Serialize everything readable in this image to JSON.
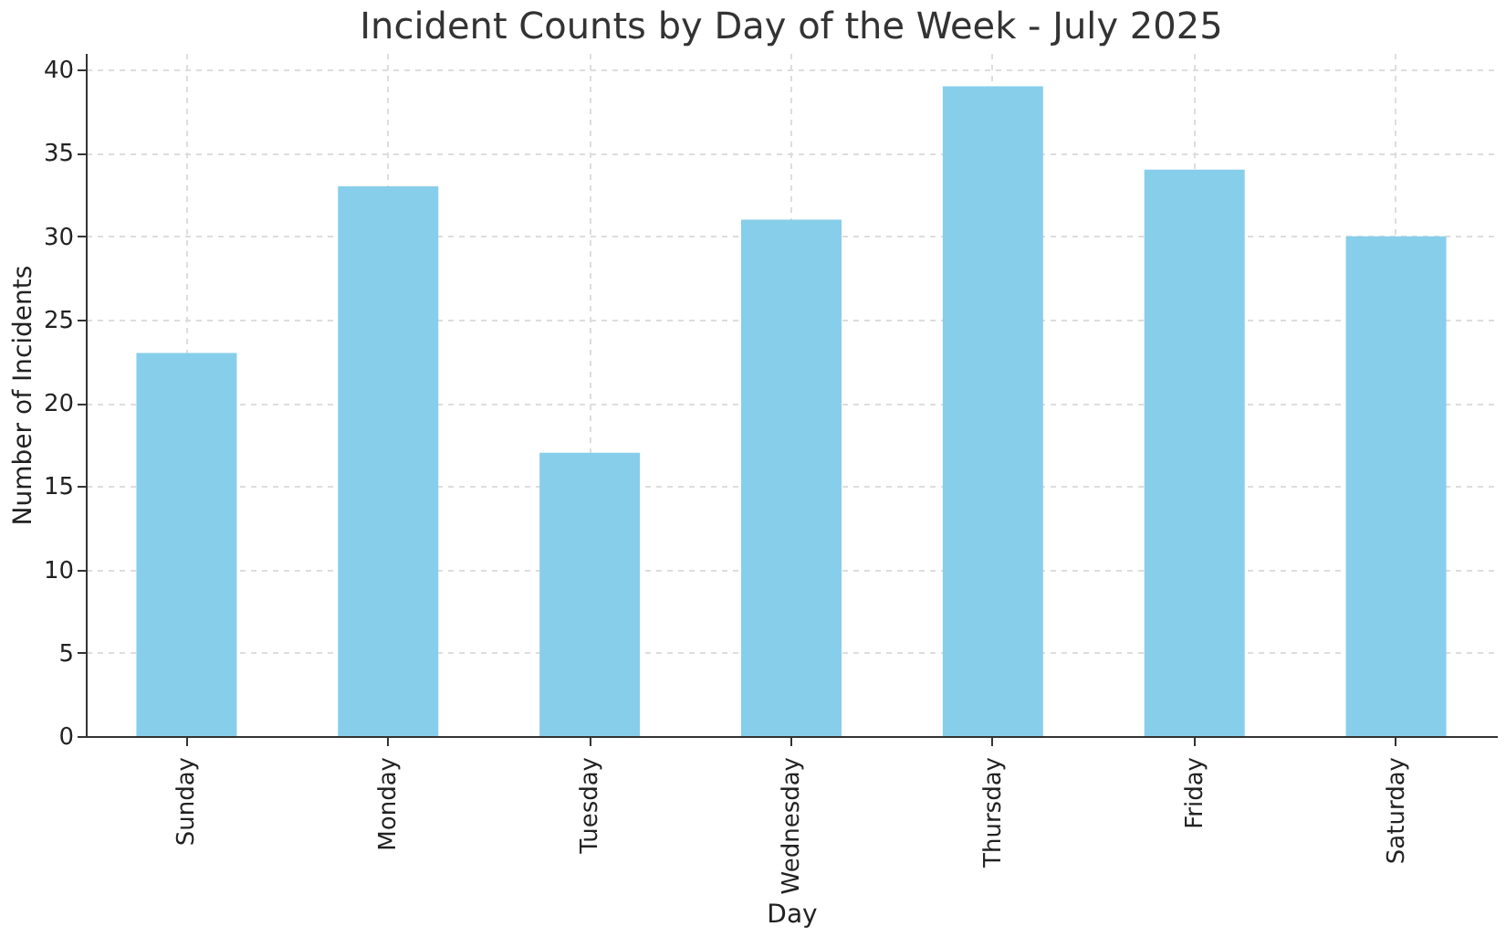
{
  "chart_data": {
    "type": "bar",
    "title": "Incident Counts by Day of the Week - July 2025",
    "xlabel": "Day",
    "ylabel": "Number of Incidents",
    "categories": [
      "Sunday",
      "Monday",
      "Tuesday",
      "Wednesday",
      "Thursday",
      "Friday",
      "Saturday"
    ],
    "values": [
      23,
      33,
      17,
      31,
      39,
      34,
      30
    ],
    "color": "#87ceeb",
    "ylim": [
      0,
      41
    ],
    "yticks": [
      0,
      5,
      10,
      15,
      20,
      25,
      30,
      35,
      40
    ],
    "grid": true
  }
}
